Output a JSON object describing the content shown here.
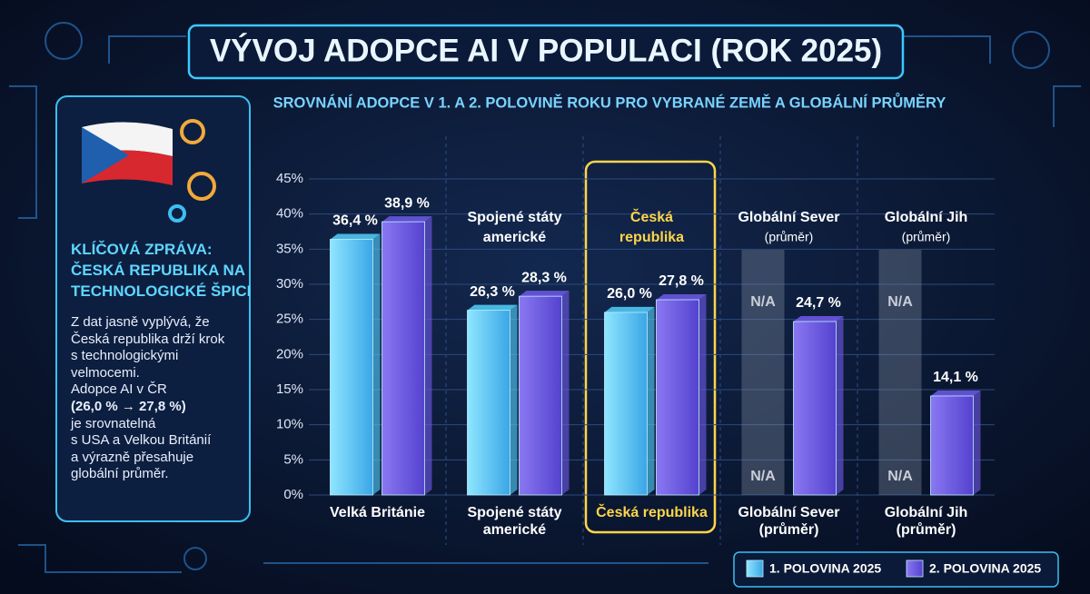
{
  "panel": {
    "heading": [
      "KLÍČOVÁ ZPRÁVA:",
      "ČESKÁ REPUBLIKA NA",
      "TECHNOLOGICKÉ ŠPICI"
    ],
    "body": [
      "Z dat jasně vyplývá, že",
      "Česká republika drží krok",
      "s technologickými",
      "velmocemi.",
      "Adopce AI v ČR",
      "(26,0 % → 27,8 %)",
      "je srovnatelná",
      "s USA a Velkou Británií",
      "a výrazně přesahuje",
      "globální průměr."
    ]
  },
  "chart_data": {
    "type": "bar",
    "title": "VÝVOJ ADOPCE AI V POPULACI (ROK 2025)",
    "subtitle": "SROVNÁNÍ ADOPCE V 1. A 2. POLOVINĚ ROKU PRO VYBRANÉ ZEMĚ A GLOBÁLNÍ PRŮMĚRY",
    "categories": [
      [
        "Velká Británie"
      ],
      [
        "Spojené státy",
        "americké"
      ],
      [
        "Česká republika"
      ],
      [
        "Globální Sever",
        "(průměr)"
      ],
      [
        "Globální Jih",
        "(průměr)"
      ]
    ],
    "top_labels": [
      null,
      [
        "Spojené státy",
        "americké"
      ],
      [
        "Česká",
        "republika"
      ],
      [
        "Globální Sever",
        "(průměr)"
      ],
      [
        "Globální Jih",
        "(průměr)"
      ]
    ],
    "series": [
      {
        "name": "1. POLOVINA 2025",
        "color": "#4fc6f2",
        "values": [
          36.4,
          26.3,
          26.0,
          null,
          null
        ],
        "value_labels": [
          "36,4 %",
          "26,3 %",
          "26,0 %",
          null,
          null
        ]
      },
      {
        "name": "2. POLOVINA 2025",
        "color": "#6a56e0",
        "values": [
          38.9,
          28.3,
          27.8,
          24.7,
          14.1
        ],
        "value_labels": [
          "38,9 %",
          "28,3 %",
          "27,8 %",
          "24,7 %",
          "14,1 %"
        ]
      }
    ],
    "na_label": "N/A",
    "ylim": [
      0,
      45
    ],
    "yticks": [
      {
        "value": 0,
        "label": "0%"
      },
      {
        "value": 5,
        "label": "5%"
      },
      {
        "value": 10,
        "label": "10%"
      },
      {
        "value": 15,
        "label": "15%"
      },
      {
        "value": 20,
        "label": "20%"
      },
      {
        "value": 25,
        "label": "25%"
      },
      {
        "value": 30,
        "label": "30%"
      },
      {
        "value": 35,
        "label": "35%"
      },
      {
        "value": 40,
        "label": "40%"
      },
      {
        "value": 45,
        "label": "45%"
      }
    ],
    "grid": true
  }
}
